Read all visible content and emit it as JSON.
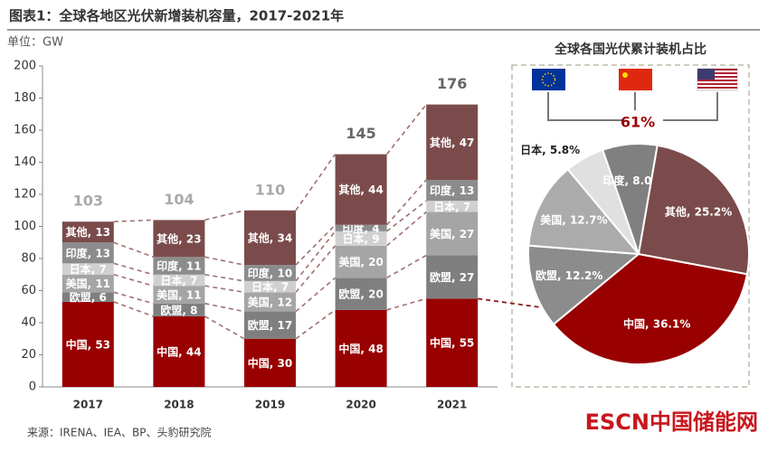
{
  "logo": "ESCN中国储能网",
  "chart_data": [
    {
      "type": "stacked-bar",
      "title": "图表1：全球各地区光伏新增装机容量，2017-2021年",
      "unit_label": "单位：GW",
      "source": "来源：IRENA、IEA、BP、头豹研究院",
      "categories": [
        "2017",
        "2018",
        "2019",
        "2020",
        "2021"
      ],
      "series": [
        {
          "name": "中国",
          "color": "#990000",
          "values": [
            53,
            44,
            30,
            48,
            55
          ],
          "value_labels": [
            "中国, 53",
            "中国, 44",
            "中国, 30",
            "中国, 48",
            "中国, 55"
          ]
        },
        {
          "name": "欧盟",
          "color": "#7f7f7f",
          "values": [
            6,
            8,
            17,
            20,
            27
          ],
          "value_labels": [
            "欧盟, 6",
            "欧盟, 8",
            "欧盟, 17",
            "欧盟, 20",
            "欧盟, 27"
          ]
        },
        {
          "name": "美国",
          "color": "#a5a5a5",
          "values": [
            11,
            11,
            12,
            20,
            27
          ],
          "value_labels": [
            "美国, 11",
            "美国, 11",
            "美国, 12",
            "美国, 20",
            "美国, 27"
          ]
        },
        {
          "name": "日本",
          "color": "#d0d0d0",
          "values": [
            7,
            7,
            7,
            9,
            7
          ],
          "value_labels": [
            "日本, 7",
            "日本, 7",
            "日本, 7",
            "日本, 9",
            "日本, 7"
          ]
        },
        {
          "name": "印度",
          "color": "#8c8c8c",
          "values": [
            13,
            11,
            10,
            4,
            13
          ],
          "value_labels": [
            "印度, 13",
            "印度, 11",
            "印度, 10",
            "印度, 4",
            "印度, 13"
          ]
        },
        {
          "name": "其他",
          "color": "#7b4b4b",
          "values": [
            13,
            23,
            34,
            44,
            47
          ],
          "value_labels": [
            "其他, 13",
            "其他, 23",
            "其他, 34",
            "其他, 44",
            "其他, 47"
          ]
        }
      ],
      "totals": [
        103,
        104,
        110,
        145,
        176
      ],
      "ylim": [
        0,
        200
      ],
      "yticks": [
        0,
        20,
        40,
        60,
        80,
        100,
        120,
        140,
        160,
        180,
        200
      ],
      "grid": false
    },
    {
      "type": "pie",
      "title": "全球各国光伏累计装机占比",
      "annotation": "61%",
      "categories": [
        "中国",
        "欧盟",
        "美国",
        "日本",
        "印度",
        "其他"
      ],
      "values": [
        36.1,
        12.2,
        12.7,
        5.8,
        8.0,
        25.2
      ],
      "value_labels": [
        "中国, 36.1%",
        "欧盟, 12.2%",
        "美国, 12.7%",
        "日本, 5.8%",
        "印度, 8.0%",
        "其他, 25.2%"
      ],
      "colors": [
        "#990000",
        "#8c8c8c",
        "#ababab",
        "#e0e0e0",
        "#808080",
        "#7b4b4b"
      ]
    }
  ]
}
